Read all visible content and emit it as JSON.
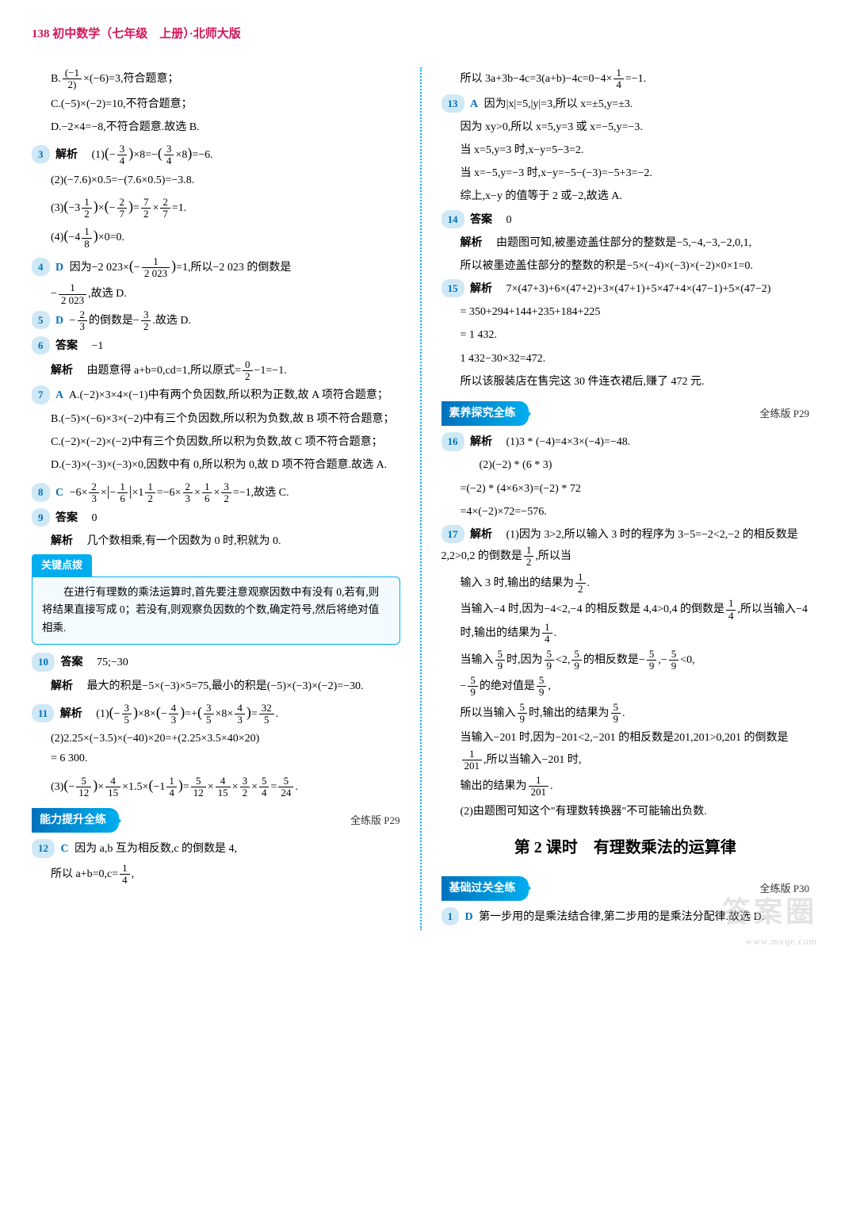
{
  "header": {
    "page_num": "138",
    "title": "初中数学（七年级　上册）·北师大版"
  },
  "left": {
    "q2b": "B.(−1/2)×(−6)=3,符合题意；",
    "q2c": "C.(−5)×(−2)=10,不符合题意；",
    "q2d": "D.−2×4=−8,不符合题意.故选 B.",
    "q3": {
      "num": "3",
      "label": "解析",
      "l1": "(1)(−3/4)×8=−(3/4×8)=−6.",
      "l2": "(2)(−7.6)×0.5=−(7.6×0.5)=−3.8.",
      "l3": "(3)(−3 1/2)×(−2/7)=7/2×2/7=1.",
      "l4": "(4)(−4 1/8)×0=0."
    },
    "q4": {
      "num": "4",
      "ans": "D",
      "text1": "因为−2 023×(−1/2023)=1,所以−2 023 的倒数是",
      "text2": "−1/2023,故选 D."
    },
    "q5": {
      "num": "5",
      "ans": "D",
      "text": "−2/3的倒数是−3/2.故选 D."
    },
    "q6": {
      "num": "6",
      "ans_label": "答案",
      "ans": "−1",
      "jiexi_label": "解析",
      "jiexi": "由题意得 a+b=0,cd=1,所以原式=0/2−1=−1."
    },
    "q7": {
      "num": "7",
      "ans": "A",
      "a": "A.(−2)×3×4×(−1)中有两个负因数,所以积为正数,故 A 项符合题意；",
      "b": "B.(−5)×(−6)×3×(−2)中有三个负因数,所以积为负数,故 B 项不符合题意；",
      "c": "C.(−2)×(−2)×(−2)中有三个负因数,所以积为负数,故 C 项不符合题意；",
      "d": "D.(−3)×(−3)×(−3)×0,因数中有 0,所以积为 0,故 D 项不符合题意.故选 A."
    },
    "q8": {
      "num": "8",
      "ans": "C",
      "text": "−6×2/3×|−1/6|×1 1/2=−6×2/3×1/6×3/2=−1,故选 C."
    },
    "q9": {
      "num": "9",
      "ans_label": "答案",
      "ans": "0",
      "jiexi_label": "解析",
      "jiexi": "几个数相乘,有一个因数为 0 时,积就为 0."
    },
    "tip": {
      "header": "关键点拨",
      "body": "在进行有理数的乘法运算时,首先要注意观察因数中有没有 0,若有,则将结果直接写成 0；若没有,则观察负因数的个数,确定符号,然后将绝对值相乘."
    },
    "q10": {
      "num": "10",
      "ans_label": "答案",
      "ans": "75;−30",
      "jiexi_label": "解析",
      "jiexi": "最大的积是−5×(−3)×5=75,最小的积是(−5)×(−3)×(−2)=−30."
    },
    "q11": {
      "num": "11",
      "label": "解析",
      "l1": "(1)(−3/5)×8×(−4/3)=+(3/5×8×4/3)=32/5.",
      "l2": "(2)2.25×(−3.5)×(−40)×20=+(2.25×3.5×40×20)=6 300.",
      "l3": "(3)(−5/12)×4/15×1.5×(−1 1/4)=5/12×4/15×3/2×5/4=5/24."
    },
    "sec1": {
      "banner": "能力提升全练",
      "ref": "全练版 P29"
    },
    "q12": {
      "num": "12",
      "ans": "C",
      "l1": "因为 a,b 互为相反数,c 的倒数是 4,",
      "l2": "所以 a+b=0,c=1/4,"
    }
  },
  "right": {
    "q12_cont": "所以 3a+3b−4c=3(a+b)−4c=0−4×1/4=−1.",
    "q13": {
      "num": "13",
      "ans": "A",
      "l1": "因为|x|=5,|y|=3,所以 x=±5,y=±3.",
      "l2": "因为 xy>0,所以 x=5,y=3 或 x=−5,y=−3.",
      "l3": "当 x=5,y=3 时,x−y=5−3=2.",
      "l4": "当 x=−5,y=−3 时,x−y=−5−(−3)=−5+3=−2.",
      "l5": "综上,x−y 的值等于 2 或−2,故选 A."
    },
    "q14": {
      "num": "14",
      "ans_label": "答案",
      "ans": "0",
      "jiexi_label": "解析",
      "l1": "由题图可知,被墨迹盖住部分的整数是−5,−4,−3,−2,0,1,",
      "l2": "所以被墨迹盖住部分的整数的积是−5×(−4)×(−3)×(−2)×0×1=0."
    },
    "q15": {
      "num": "15",
      "label": "解析",
      "l1": "7×(47+3)+6×(47+2)+3×(47+1)+5×47+4×(47−1)+5×(47−2)",
      "l2": "= 350+294+144+235+184+225",
      "l3": "= 1 432.",
      "l4": "1 432−30×32=472.",
      "l5": "所以该服装店在售完这 30 件连衣裙后,赚了 472 元."
    },
    "sec2": {
      "banner": "素养探究全练",
      "ref": "全练版 P29"
    },
    "q16": {
      "num": "16",
      "label": "解析",
      "l1": "(1)3 * (−4)=4×3×(−4)=−48.",
      "l2": "(2)(−2) * (6 * 3)",
      "l3": "=(−2) * (4×6×3)=(−2) * 72",
      "l4": "=4×(−2)×72=−576."
    },
    "q17": {
      "num": "17",
      "label": "解析",
      "l1": "(1)因为 3>2,所以输入 3 时的程序为 3−5=−2<2,−2 的相反数是 2,2>0,2 的倒数是1/2,所以当输入 3 时,输出的结果为1/2.",
      "l2": "当输入−4 时,因为−4<2,−4 的相反数是 4,4>0,4 的倒数是1/4,所以当输入−4 时,输出的结果为1/4.",
      "l3": "当输入5/9时,因为5/9<2,5/9的相反数是−5/9,−5/9<0,−5/9的绝对值是5/9,",
      "l4": "所以当输入5/9时,输出的结果为5/9.",
      "l5": "当输入−201 时,因为−201<2,−201 的相反数是201,201>0,201 的倒数是1/201,所以当输入−201 时,输出的结果为1/201.",
      "l6": "(2)由题图可知这个\"有理数转换器\"不可能输出负数."
    },
    "lesson": "第 2 课时　有理数乘法的运算律",
    "sec3": {
      "banner": "基础过关全练",
      "ref": "全练版 P30"
    },
    "q1": {
      "num": "1",
      "ans": "D",
      "text": "第一步用的是乘法结合律,第二步用的是乘法分配律.故选 D."
    }
  },
  "watermark": {
    "main": "答案圈",
    "sub": "www.mxqe.com"
  }
}
